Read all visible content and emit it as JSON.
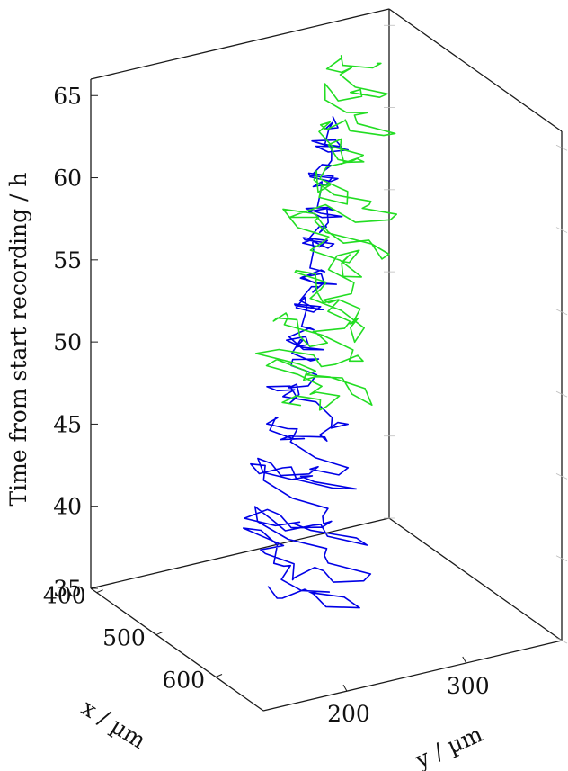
{
  "chart_data": {
    "type": "line3d",
    "zlabel": "Time from start recording / h",
    "xlabel": "x / µm",
    "ylabel": "y / µm",
    "z_ticks": [
      "35",
      "40",
      "45",
      "50",
      "55",
      "60",
      "65"
    ],
    "x_ticks": [
      "400",
      "500",
      "600"
    ],
    "y_ticks": [
      "200",
      "300"
    ],
    "zlim": [
      35,
      66
    ],
    "xlim": [
      390,
      680
    ],
    "ylim": [
      130,
      380
    ],
    "grid": false,
    "series": [
      {
        "color": "#0000e6",
        "time_range": [
          37,
          64
        ],
        "path": [
          [
            520,
            205,
            37.0
          ],
          [
            600,
            240,
            37.6
          ],
          [
            560,
            215,
            38.3
          ],
          [
            470,
            230,
            39.0
          ],
          [
            580,
            200,
            39.6
          ],
          [
            640,
            235,
            40.3
          ],
          [
            500,
            210,
            41.0
          ],
          [
            610,
            245,
            41.6
          ],
          [
            540,
            190,
            42.3
          ],
          [
            620,
            225,
            43.0
          ],
          [
            480,
            215,
            43.6
          ],
          [
            590,
            240,
            44.4
          ],
          [
            540,
            195,
            45.2
          ],
          [
            610,
            230,
            45.9
          ],
          [
            500,
            225,
            46.7
          ],
          [
            580,
            205,
            47.5
          ],
          [
            600,
            240,
            48.3
          ],
          [
            520,
            220,
            49.1
          ],
          [
            575,
            210,
            50.0
          ],
          [
            540,
            235,
            50.8
          ],
          [
            520,
            240,
            51.6
          ],
          [
            560,
            225,
            52.4
          ],
          [
            510,
            250,
            53.3
          ],
          [
            545,
            235,
            54.2
          ],
          [
            520,
            255,
            55.0
          ],
          [
            550,
            240,
            55.9
          ],
          [
            500,
            260,
            56.8
          ],
          [
            535,
            250,
            57.7
          ],
          [
            510,
            265,
            58.5
          ],
          [
            530,
            255,
            59.4
          ],
          [
            495,
            270,
            60.3
          ],
          [
            520,
            260,
            61.2
          ],
          [
            500,
            275,
            62.1
          ],
          [
            515,
            268,
            63.0
          ],
          [
            500,
            278,
            64.0
          ]
        ]
      },
      {
        "color": "#22dd22",
        "time_range": [
          48,
          66
        ],
        "path": [
          [
            520,
            230,
            48.0
          ],
          [
            560,
            250,
            48.6
          ],
          [
            480,
            240,
            49.2
          ],
          [
            600,
            260,
            49.8
          ],
          [
            500,
            225,
            50.5
          ],
          [
            580,
            270,
            51.1
          ],
          [
            460,
            245,
            51.8
          ],
          [
            560,
            235,
            52.4
          ],
          [
            520,
            280,
            53.0
          ],
          [
            600,
            250,
            53.7
          ],
          [
            470,
            265,
            54.3
          ],
          [
            580,
            240,
            55.0
          ],
          [
            500,
            290,
            55.6
          ],
          [
            560,
            260,
            56.3
          ],
          [
            450,
            270,
            57.0
          ],
          [
            590,
            285,
            57.6
          ],
          [
            480,
            250,
            58.3
          ],
          [
            560,
            300,
            59.0
          ],
          [
            470,
            275,
            59.6
          ],
          [
            540,
            260,
            60.3
          ],
          [
            460,
            300,
            61.0
          ],
          [
            530,
            285,
            61.6
          ],
          [
            450,
            290,
            62.3
          ],
          [
            520,
            310,
            63.0
          ],
          [
            440,
            300,
            63.6
          ],
          [
            490,
            320,
            64.3
          ],
          [
            430,
            310,
            65.0
          ],
          [
            470,
            330,
            65.6
          ]
        ]
      }
    ]
  }
}
